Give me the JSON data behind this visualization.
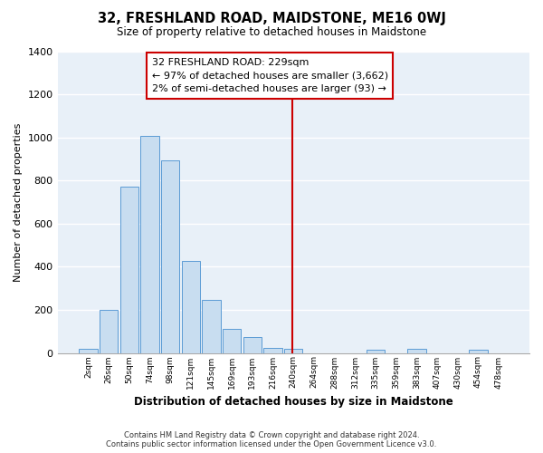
{
  "title": "32, FRESHLAND ROAD, MAIDSTONE, ME16 0WJ",
  "subtitle": "Size of property relative to detached houses in Maidstone",
  "xlabel": "Distribution of detached houses by size in Maidstone",
  "ylabel": "Number of detached properties",
  "bar_labels": [
    "2sqm",
    "26sqm",
    "50sqm",
    "74sqm",
    "98sqm",
    "121sqm",
    "145sqm",
    "169sqm",
    "193sqm",
    "216sqm",
    "240sqm",
    "264sqm",
    "288sqm",
    "312sqm",
    "335sqm",
    "359sqm",
    "383sqm",
    "407sqm",
    "430sqm",
    "454sqm",
    "478sqm"
  ],
  "bar_values": [
    20,
    200,
    770,
    1005,
    893,
    425,
    245,
    110,
    72,
    25,
    20,
    0,
    0,
    0,
    15,
    0,
    20,
    0,
    0,
    15,
    0
  ],
  "bar_color": "#c8ddf0",
  "bar_edge_color": "#5b9bd5",
  "vline_color": "#cc0000",
  "annotation_title": "32 FRESHLAND ROAD: 229sqm",
  "annotation_line1": "← 97% of detached houses are smaller (3,662)",
  "annotation_line2": "2% of semi-detached houses are larger (93) →",
  "annotation_box_color": "white",
  "annotation_box_edge": "#cc0000",
  "ylim": [
    0,
    1400
  ],
  "yticks": [
    0,
    200,
    400,
    600,
    800,
    1000,
    1200,
    1400
  ],
  "footer_line1": "Contains HM Land Registry data © Crown copyright and database right 2024.",
  "footer_line2": "Contains public sector information licensed under the Open Government Licence v3.0.",
  "bg_color": "#ffffff",
  "plot_bg_color": "#e8f0f8",
  "grid_color": "#ffffff"
}
